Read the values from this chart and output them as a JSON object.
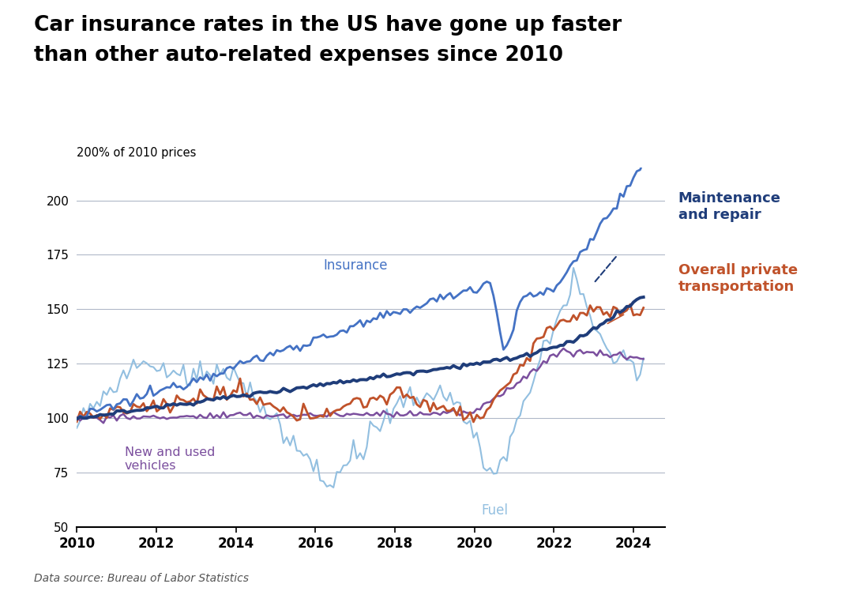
{
  "title_line1": "Car insurance rates in the US have gone up faster",
  "title_line2": "than other auto-related expenses since 2010",
  "ylabel": "200% of 2010 prices",
  "source": "Data source: Bureau of Labor Statistics",
  "ylim": [
    50,
    215
  ],
  "yticks": [
    50,
    75,
    100,
    125,
    150,
    175,
    200
  ],
  "xticks": [
    2010,
    2012,
    2014,
    2016,
    2018,
    2020,
    2022,
    2024
  ],
  "xlim": [
    2010,
    2024.8
  ],
  "colors": {
    "insurance": "#4472C4",
    "maintenance": "#1F3D7A",
    "overall": "#C0522A",
    "vehicles": "#7B4F9E",
    "fuel": "#92BFE0"
  },
  "insurance_label": "Insurance",
  "fuel_label": "Fuel",
  "vehicles_label": "New and used\nvehicles",
  "maintenance_label": "Maintenance\nand repair",
  "overall_label": "Overall private\ntransportation"
}
